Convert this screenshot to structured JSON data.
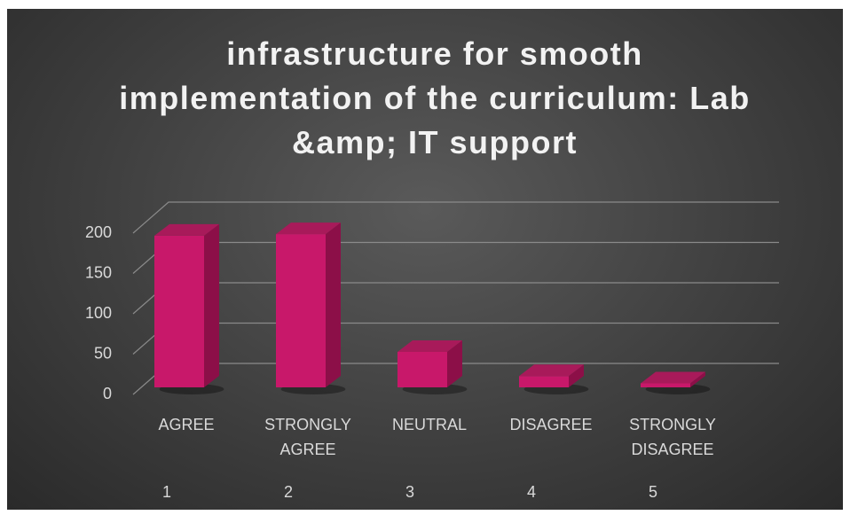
{
  "chart_data": {
    "type": "bar3d",
    "title": "infrastructure for smooth implementation of the curriculum: Lab &amp; IT support",
    "categories": [
      "AGREE",
      "STRONGLY AGREE",
      "NEUTRAL",
      "DISAGREE",
      "STRONGLY DISAGREE"
    ],
    "category_numbers": [
      1,
      2,
      3,
      4,
      5
    ],
    "values": [
      188,
      190,
      44,
      14,
      5
    ],
    "color": "#c8186a",
    "ylim": [
      0,
      200
    ],
    "yticks": [
      0,
      50,
      100,
      150,
      200
    ],
    "grid": true
  }
}
